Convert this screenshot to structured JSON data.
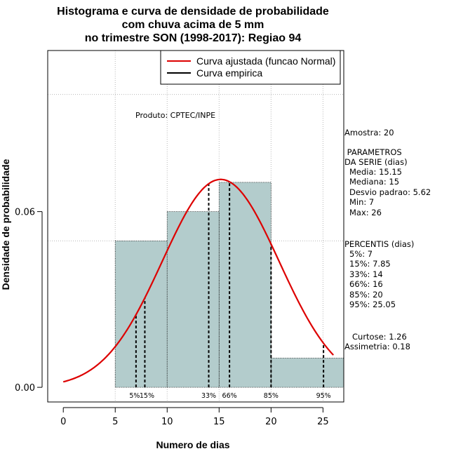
{
  "chart_data": {
    "type": "bar",
    "title_lines": [
      "Histograma e curva de densidade de probabilidade",
      "com chuva acima de 5 mm",
      "no trimestre SON (1998-2017): Regiao 94"
    ],
    "xlabel": "Numero de dias",
    "ylabel": "Densidade de probabilidade",
    "xlim": [
      -1.5,
      27
    ],
    "ylim": [
      -0.005,
      0.115
    ],
    "x_ticks": [
      0,
      5,
      10,
      15,
      20,
      25
    ],
    "y_ticks": [
      0.0,
      0.06
    ],
    "y_tick_labels": [
      "0.00",
      "0.06"
    ],
    "grid_y": [
      0.05,
      0.1
    ],
    "grid_x": [
      5,
      10,
      15,
      20,
      25
    ],
    "bins": [
      {
        "start": 5,
        "end": 10,
        "density": 0.05
      },
      {
        "start": 10,
        "end": 15,
        "density": 0.06
      },
      {
        "start": 15,
        "end": 20,
        "density": 0.07
      },
      {
        "start": 20,
        "end": 27,
        "density": 0.01
      }
    ],
    "normal_curve": {
      "mean": 15.15,
      "sd": 5.62,
      "x_from": 0,
      "x_to": 26
    },
    "percentile_lines": [
      {
        "x": 7,
        "label": "5%"
      },
      {
        "x": 7.85,
        "label": "15%"
      },
      {
        "x": 14,
        "label": "33%"
      },
      {
        "x": 16,
        "label": "66%"
      },
      {
        "x": 20,
        "label": "85%"
      },
      {
        "x": 25.05,
        "label": "95%"
      }
    ],
    "legend": {
      "position": "top-right",
      "items": [
        {
          "label": "Curva ajustada (funcao Normal)",
          "color": "#dd0000"
        },
        {
          "label": "Curva empirica",
          "color": "#000000"
        }
      ]
    },
    "annotation": "Produto: CPTEC/INPE",
    "colors": {
      "bar_fill": "#b3cccc",
      "curve": "#dd0000",
      "grid": "#b8b8b8"
    }
  },
  "side_panel": {
    "sample": "Amostra: 20",
    "params_header": [
      " PARAMETROS",
      "DA SERIE (dias)"
    ],
    "params": [
      "Media: 15.15",
      "Mediana: 15",
      "Desvio padrao: 5.62",
      "Min: 7",
      "Max: 26"
    ],
    "percentis_header": "PERCENTIS (dias)",
    "percentis": [
      "5%: 7",
      "15%: 7.85",
      "33%: 14",
      "66%: 16",
      "85%: 20",
      "95%: 25.05"
    ],
    "shape": [
      "Curtose: 1.26",
      "Assimetria: 0.18"
    ]
  }
}
